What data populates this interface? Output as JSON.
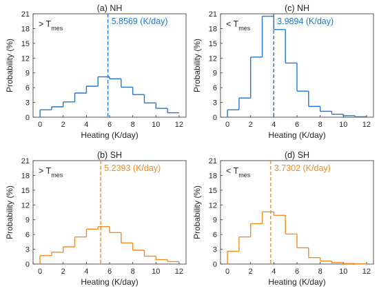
{
  "chart_data": [
    {
      "type": "step",
      "title": "(a) NH",
      "condition": {
        "prefix": "> T",
        "subscript": "mes"
      },
      "xlabel": "Heating (K/day)",
      "ylabel": "Probability (%)",
      "xlim": [
        -0.6,
        12.6
      ],
      "ylim": [
        0,
        21
      ],
      "xticks": [
        0,
        2,
        4,
        6,
        8,
        10,
        12
      ],
      "yticks": [
        0,
        3,
        6,
        9,
        12,
        15,
        18,
        21
      ],
      "bin_edges": [
        0,
        1,
        2,
        3,
        4,
        5,
        6,
        7,
        8,
        9,
        10,
        11,
        12
      ],
      "values": [
        1.5,
        2.1,
        3.1,
        4.9,
        6.3,
        8.2,
        7.8,
        6.1,
        4.6,
        2.9,
        1.8,
        0.9
      ],
      "reference": {
        "x": 5.8569,
        "label": "5.8569 (K/day)"
      },
      "color": "#1f77d4"
    },
    {
      "type": "step",
      "title": "(c) NH",
      "condition": {
        "prefix": "< T",
        "subscript": "mes"
      },
      "xlabel": "Heating (K/day)",
      "ylabel": "Probability (%)",
      "xlim": [
        -0.6,
        12.6
      ],
      "ylim": [
        0,
        21
      ],
      "xticks": [
        0,
        2,
        4,
        6,
        8,
        10,
        12
      ],
      "yticks": [
        0,
        3,
        6,
        9,
        12,
        15,
        18,
        21
      ],
      "bin_edges": [
        0,
        1,
        2,
        3,
        4,
        5,
        6,
        7,
        8,
        9,
        10,
        11,
        12
      ],
      "values": [
        1.5,
        3.9,
        12.2,
        20.5,
        17.8,
        11.0,
        5.3,
        2.2,
        1.2,
        0.6,
        0.3,
        0.1
      ],
      "reference": {
        "x": 3.9894,
        "label": "3.9894 (K/day)"
      },
      "color": "#1f77d4"
    },
    {
      "type": "step",
      "title": "(b) SH",
      "condition": {
        "prefix": "> T",
        "subscript": "mes"
      },
      "xlabel": "Heating (K/day)",
      "ylabel": "Probability (%)",
      "xlim": [
        -0.6,
        12.6
      ],
      "ylim": [
        0,
        21
      ],
      "xticks": [
        0,
        2,
        4,
        6,
        8,
        10,
        12
      ],
      "yticks": [
        0,
        3,
        6,
        9,
        12,
        15,
        18,
        21
      ],
      "bin_edges": [
        0,
        1,
        2,
        3,
        4,
        5,
        6,
        7,
        8,
        9,
        10,
        11,
        12
      ],
      "values": [
        1.7,
        2.4,
        3.5,
        5.5,
        7.1,
        7.6,
        6.4,
        4.3,
        2.8,
        1.6,
        0.9,
        0.5
      ],
      "reference": {
        "x": 5.2393,
        "label": "5.2393 (K/day)"
      },
      "color": "#f28a1e"
    },
    {
      "type": "step",
      "title": "(d) SH",
      "condition": {
        "prefix": "< T",
        "subscript": "mes"
      },
      "xlabel": "Heating (K/day)",
      "ylabel": "Probability (%)",
      "xlim": [
        -0.6,
        12.6
      ],
      "ylim": [
        0,
        21
      ],
      "xticks": [
        0,
        2,
        4,
        6,
        8,
        10,
        12
      ],
      "yticks": [
        0,
        3,
        6,
        9,
        12,
        15,
        18,
        21
      ],
      "bin_edges": [
        0,
        1,
        2,
        3,
        4,
        5,
        6,
        7,
        8,
        9,
        10,
        11,
        12
      ],
      "values": [
        2.6,
        5.5,
        8.2,
        10.6,
        9.9,
        6.1,
        3.3,
        1.3,
        0.6,
        0.3,
        0.1,
        0.05
      ],
      "reference": {
        "x": 3.7302,
        "label": "3.7302 (K/day)"
      },
      "color": "#f28a1e"
    }
  ]
}
